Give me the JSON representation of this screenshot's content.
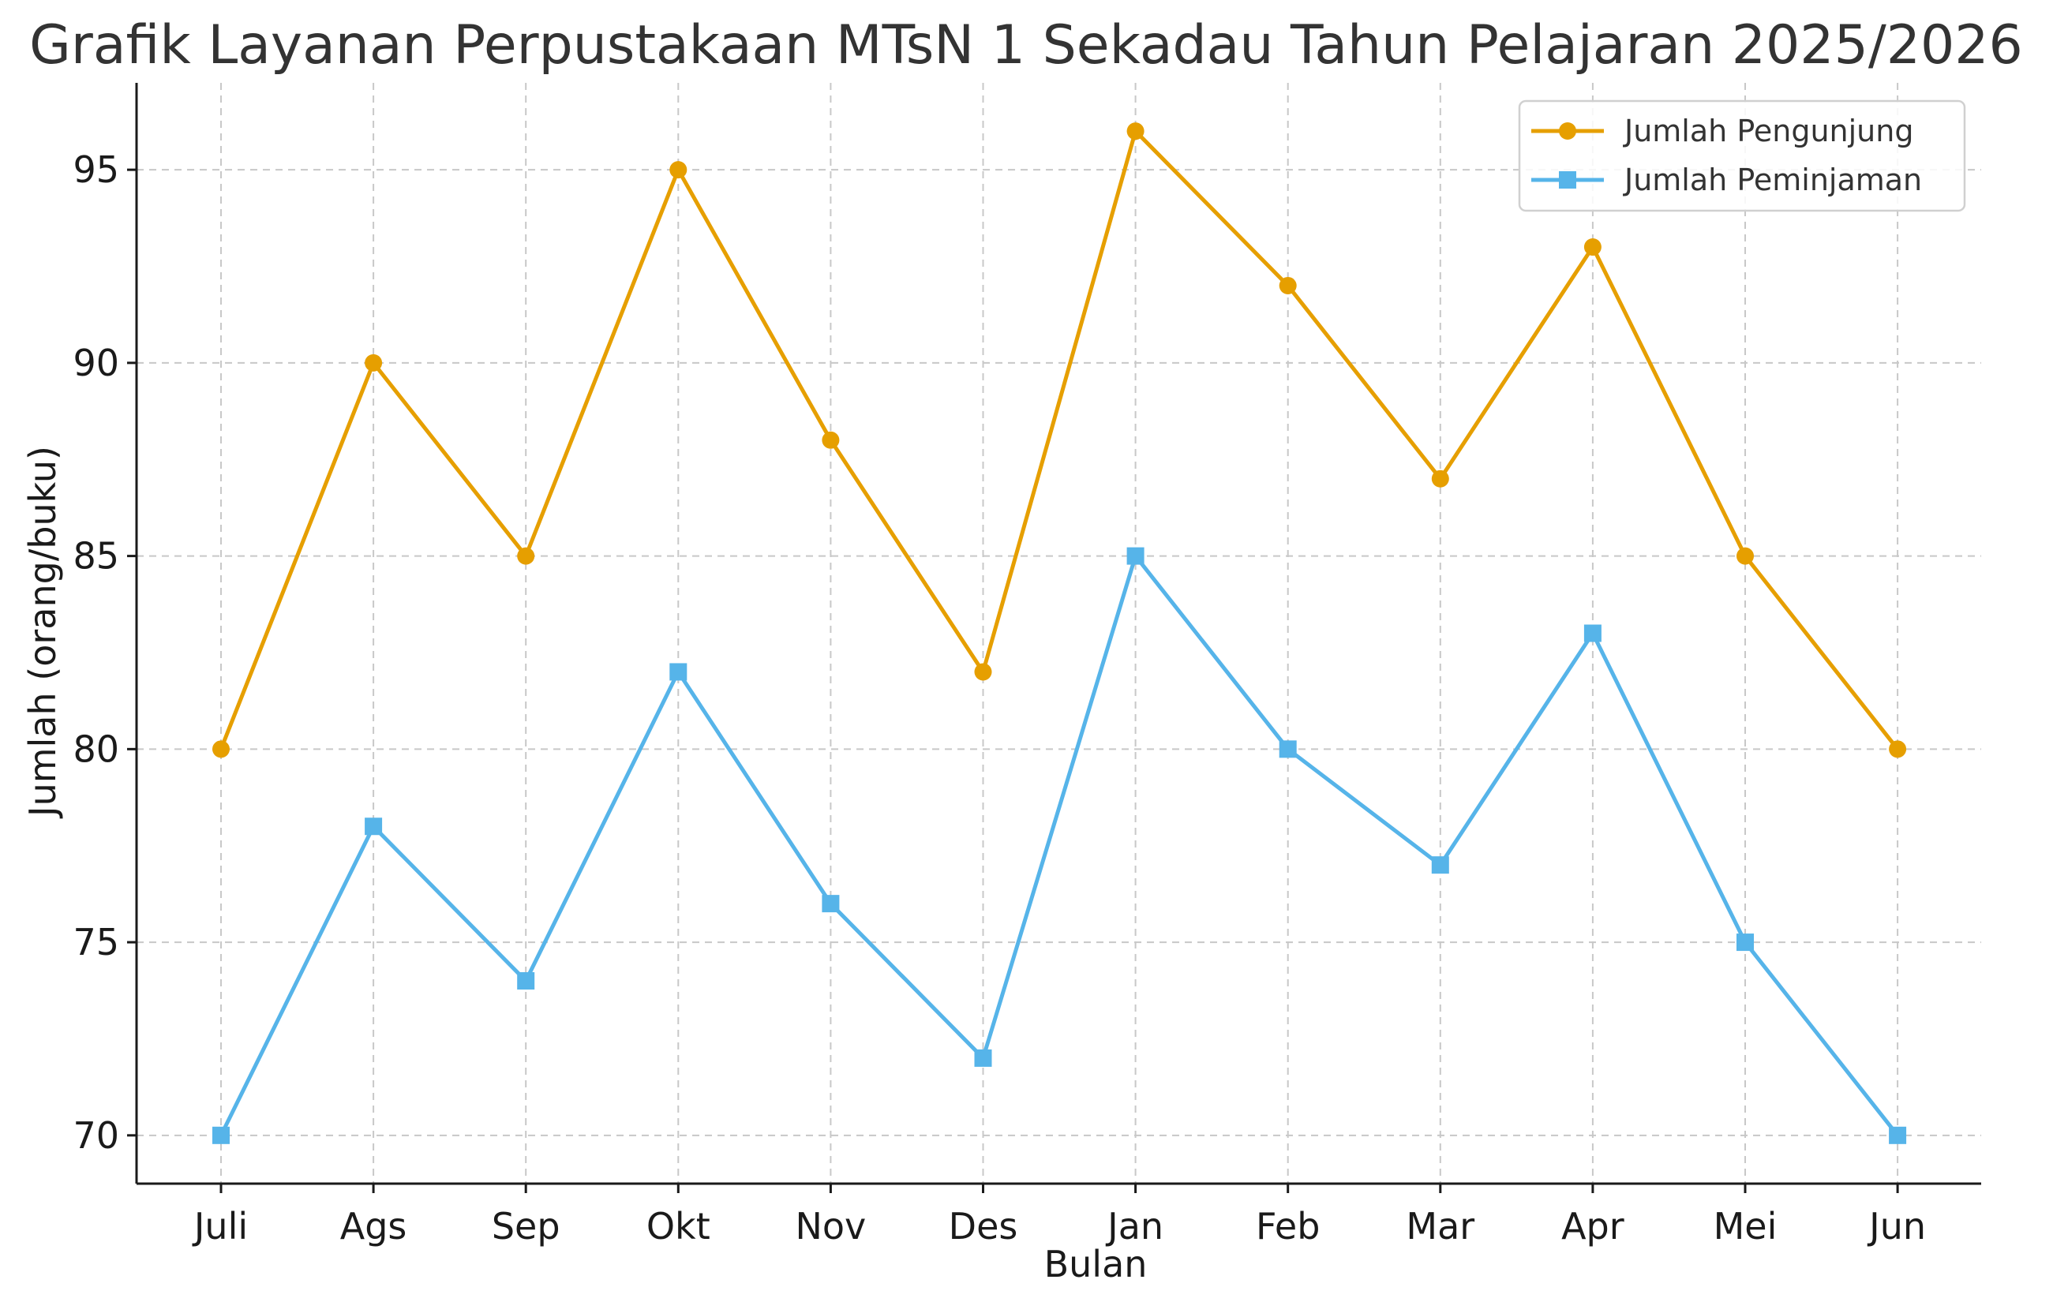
{
  "chart_data": {
    "type": "line",
    "title": "Grafik Layanan Perpustakaan MTsN 1 Sekadau Tahun Pelajaran 2025/2026",
    "xlabel": "Bulan",
    "ylabel": "Jumlah (orang/buku)",
    "categories": [
      "Juli",
      "Ags",
      "Sep",
      "Okt",
      "Nov",
      "Des",
      "Jan",
      "Feb",
      "Mar",
      "Apr",
      "Mei",
      "Jun"
    ],
    "ylim": [
      68.75,
      97.25
    ],
    "yticks": [
      70,
      75,
      80,
      85,
      90,
      95
    ],
    "grid": true,
    "legend_position": "top-right",
    "series": [
      {
        "name": "Jumlah Pengunjung",
        "marker": "circle",
        "color": "#E69F00",
        "values": [
          80,
          90,
          85,
          95,
          88,
          82,
          96,
          92,
          87,
          93,
          85,
          80
        ]
      },
      {
        "name": "Jumlah Peminjaman",
        "marker": "square",
        "color": "#56B4E9",
        "values": [
          70,
          78,
          74,
          82,
          76,
          72,
          85,
          80,
          77,
          83,
          75,
          70
        ]
      }
    ]
  }
}
